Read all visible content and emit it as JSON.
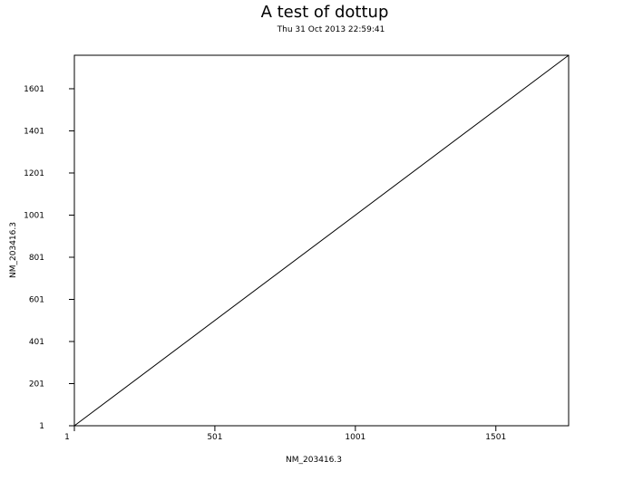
{
  "chart_data": {
    "type": "line",
    "title": "A test of dottup",
    "subtitle": "Thu 31 Oct 2013 22:59:41",
    "xlabel": "NM_203416.3",
    "ylabel": "NM_203416.3",
    "xlim": [
      1,
      1760
    ],
    "ylim": [
      1,
      1760
    ],
    "x_ticks": [
      1,
      501,
      1001,
      1501
    ],
    "y_ticks": [
      1,
      201,
      401,
      601,
      801,
      1001,
      1201,
      1401,
      1601
    ],
    "x_tick_labels": [
      "1",
      "501",
      "1001",
      "1501"
    ],
    "y_tick_labels": [
      "1",
      "201",
      "401",
      "601",
      "801",
      "1001",
      "1201",
      "1401",
      "1601"
    ],
    "grid": false,
    "series": [
      {
        "x": [
          1,
          1760
        ],
        "y": [
          1,
          1760
        ]
      }
    ]
  }
}
